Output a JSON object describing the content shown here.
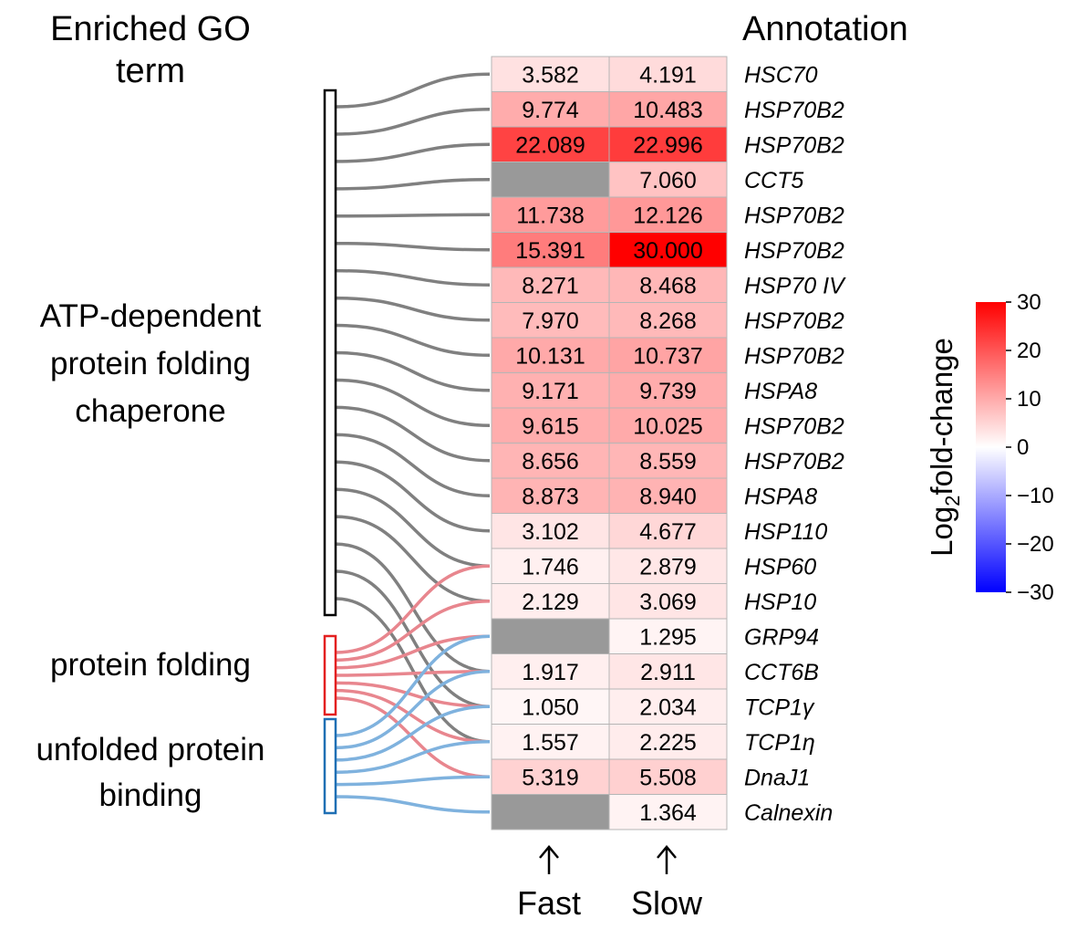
{
  "chart_data": {
    "type": "heatmap",
    "title_left": "Enriched GO term",
    "title_right": "Annotation",
    "columns": [
      "Fast",
      "Slow"
    ],
    "colorbar": {
      "label_prefix": "Log",
      "label_sub": "2",
      "label_suffix": "fold-change",
      "range": [
        -30,
        30
      ],
      "ticks": [
        "30",
        "20",
        "10",
        "0",
        "−10",
        "−20",
        "−30"
      ],
      "low_color": "#0000ff",
      "mid_color": "#ffffff",
      "high_color": "#ff0000",
      "missing_color": "#999999"
    },
    "rows": [
      {
        "annotation": "HSC70",
        "fast": 3.582,
        "slow": 4.191,
        "fast_label": "3.582",
        "slow_label": "4.191"
      },
      {
        "annotation": "HSP70B2",
        "fast": 9.774,
        "slow": 10.483,
        "fast_label": "9.774",
        "slow_label": "10.483"
      },
      {
        "annotation": "HSP70B2",
        "fast": 22.089,
        "slow": 22.996,
        "fast_label": "22.089",
        "slow_label": "22.996"
      },
      {
        "annotation": "CCT5",
        "fast": null,
        "slow": 7.06,
        "fast_label": "",
        "slow_label": "7.060"
      },
      {
        "annotation": "HSP70B2",
        "fast": 11.738,
        "slow": 12.126,
        "fast_label": "11.738",
        "slow_label": "12.126"
      },
      {
        "annotation": "HSP70B2",
        "fast": 15.391,
        "slow": 30.0,
        "fast_label": "15.391",
        "slow_label": "30.000"
      },
      {
        "annotation": "HSP70 IV",
        "fast": 8.271,
        "slow": 8.468,
        "fast_label": "8.271",
        "slow_label": "8.468"
      },
      {
        "annotation": "HSP70B2",
        "fast": 7.97,
        "slow": 8.268,
        "fast_label": "7.970",
        "slow_label": "8.268"
      },
      {
        "annotation": "HSP70B2",
        "fast": 10.131,
        "slow": 10.737,
        "fast_label": "10.131",
        "slow_label": "10.737"
      },
      {
        "annotation": "HSPA8",
        "fast": 9.171,
        "slow": 9.739,
        "fast_label": "9.171",
        "slow_label": "9.739"
      },
      {
        "annotation": "HSP70B2",
        "fast": 9.615,
        "slow": 10.025,
        "fast_label": "9.615",
        "slow_label": "10.025"
      },
      {
        "annotation": "HSP70B2",
        "fast": 8.656,
        "slow": 8.559,
        "fast_label": "8.656",
        "slow_label": "8.559"
      },
      {
        "annotation": "HSPA8",
        "fast": 8.873,
        "slow": 8.94,
        "fast_label": "8.873",
        "slow_label": "8.940"
      },
      {
        "annotation": "HSP110",
        "fast": 3.102,
        "slow": 4.677,
        "fast_label": "3.102",
        "slow_label": "4.677"
      },
      {
        "annotation": "HSP60",
        "fast": 1.746,
        "slow": 2.879,
        "fast_label": "1.746",
        "slow_label": "2.879"
      },
      {
        "annotation": "HSP10",
        "fast": 2.129,
        "slow": 3.069,
        "fast_label": "2.129",
        "slow_label": "3.069"
      },
      {
        "annotation": "GRP94",
        "fast": null,
        "slow": 1.295,
        "fast_label": "",
        "slow_label": "1.295"
      },
      {
        "annotation": "CCT6B",
        "fast": 1.917,
        "slow": 2.911,
        "fast_label": "1.917",
        "slow_label": "2.911"
      },
      {
        "annotation": "TCP1γ",
        "fast": 1.05,
        "slow": 2.034,
        "fast_label": "1.050",
        "slow_label": "2.034"
      },
      {
        "annotation": "TCP1η",
        "fast": 1.557,
        "slow": 2.225,
        "fast_label": "1.557",
        "slow_label": "2.225"
      },
      {
        "annotation": "DnaJ1",
        "fast": 5.319,
        "slow": 5.508,
        "fast_label": "5.319",
        "slow_label": "5.508"
      },
      {
        "annotation": "Calnexin",
        "fast": null,
        "slow": 1.364,
        "fast_label": "",
        "slow_label": "1.364"
      }
    ],
    "go_terms": [
      {
        "name": "ATP-dependent protein folding chaperone",
        "lines": [
          "ATP-dependent",
          "protein folding",
          "chaperone"
        ],
        "color": "#808080",
        "bracket_color": "#000000",
        "gene_rows": [
          0,
          1,
          2,
          3,
          4,
          5,
          6,
          7,
          8,
          9,
          10,
          11,
          12,
          13,
          14,
          15,
          17,
          18,
          19
        ]
      },
      {
        "name": "protein folding",
        "lines": [
          "protein folding"
        ],
        "color": "#e8868e",
        "bracket_color": "#e32020",
        "gene_rows": [
          14,
          15,
          16,
          17,
          18,
          19,
          20
        ]
      },
      {
        "name": "unfolded protein binding",
        "lines": [
          "unfolded protein",
          "binding"
        ],
        "color": "#7fb2de",
        "bracket_color": "#1f6fb4",
        "gene_rows": [
          16,
          17,
          18,
          19,
          20,
          21
        ]
      }
    ]
  }
}
